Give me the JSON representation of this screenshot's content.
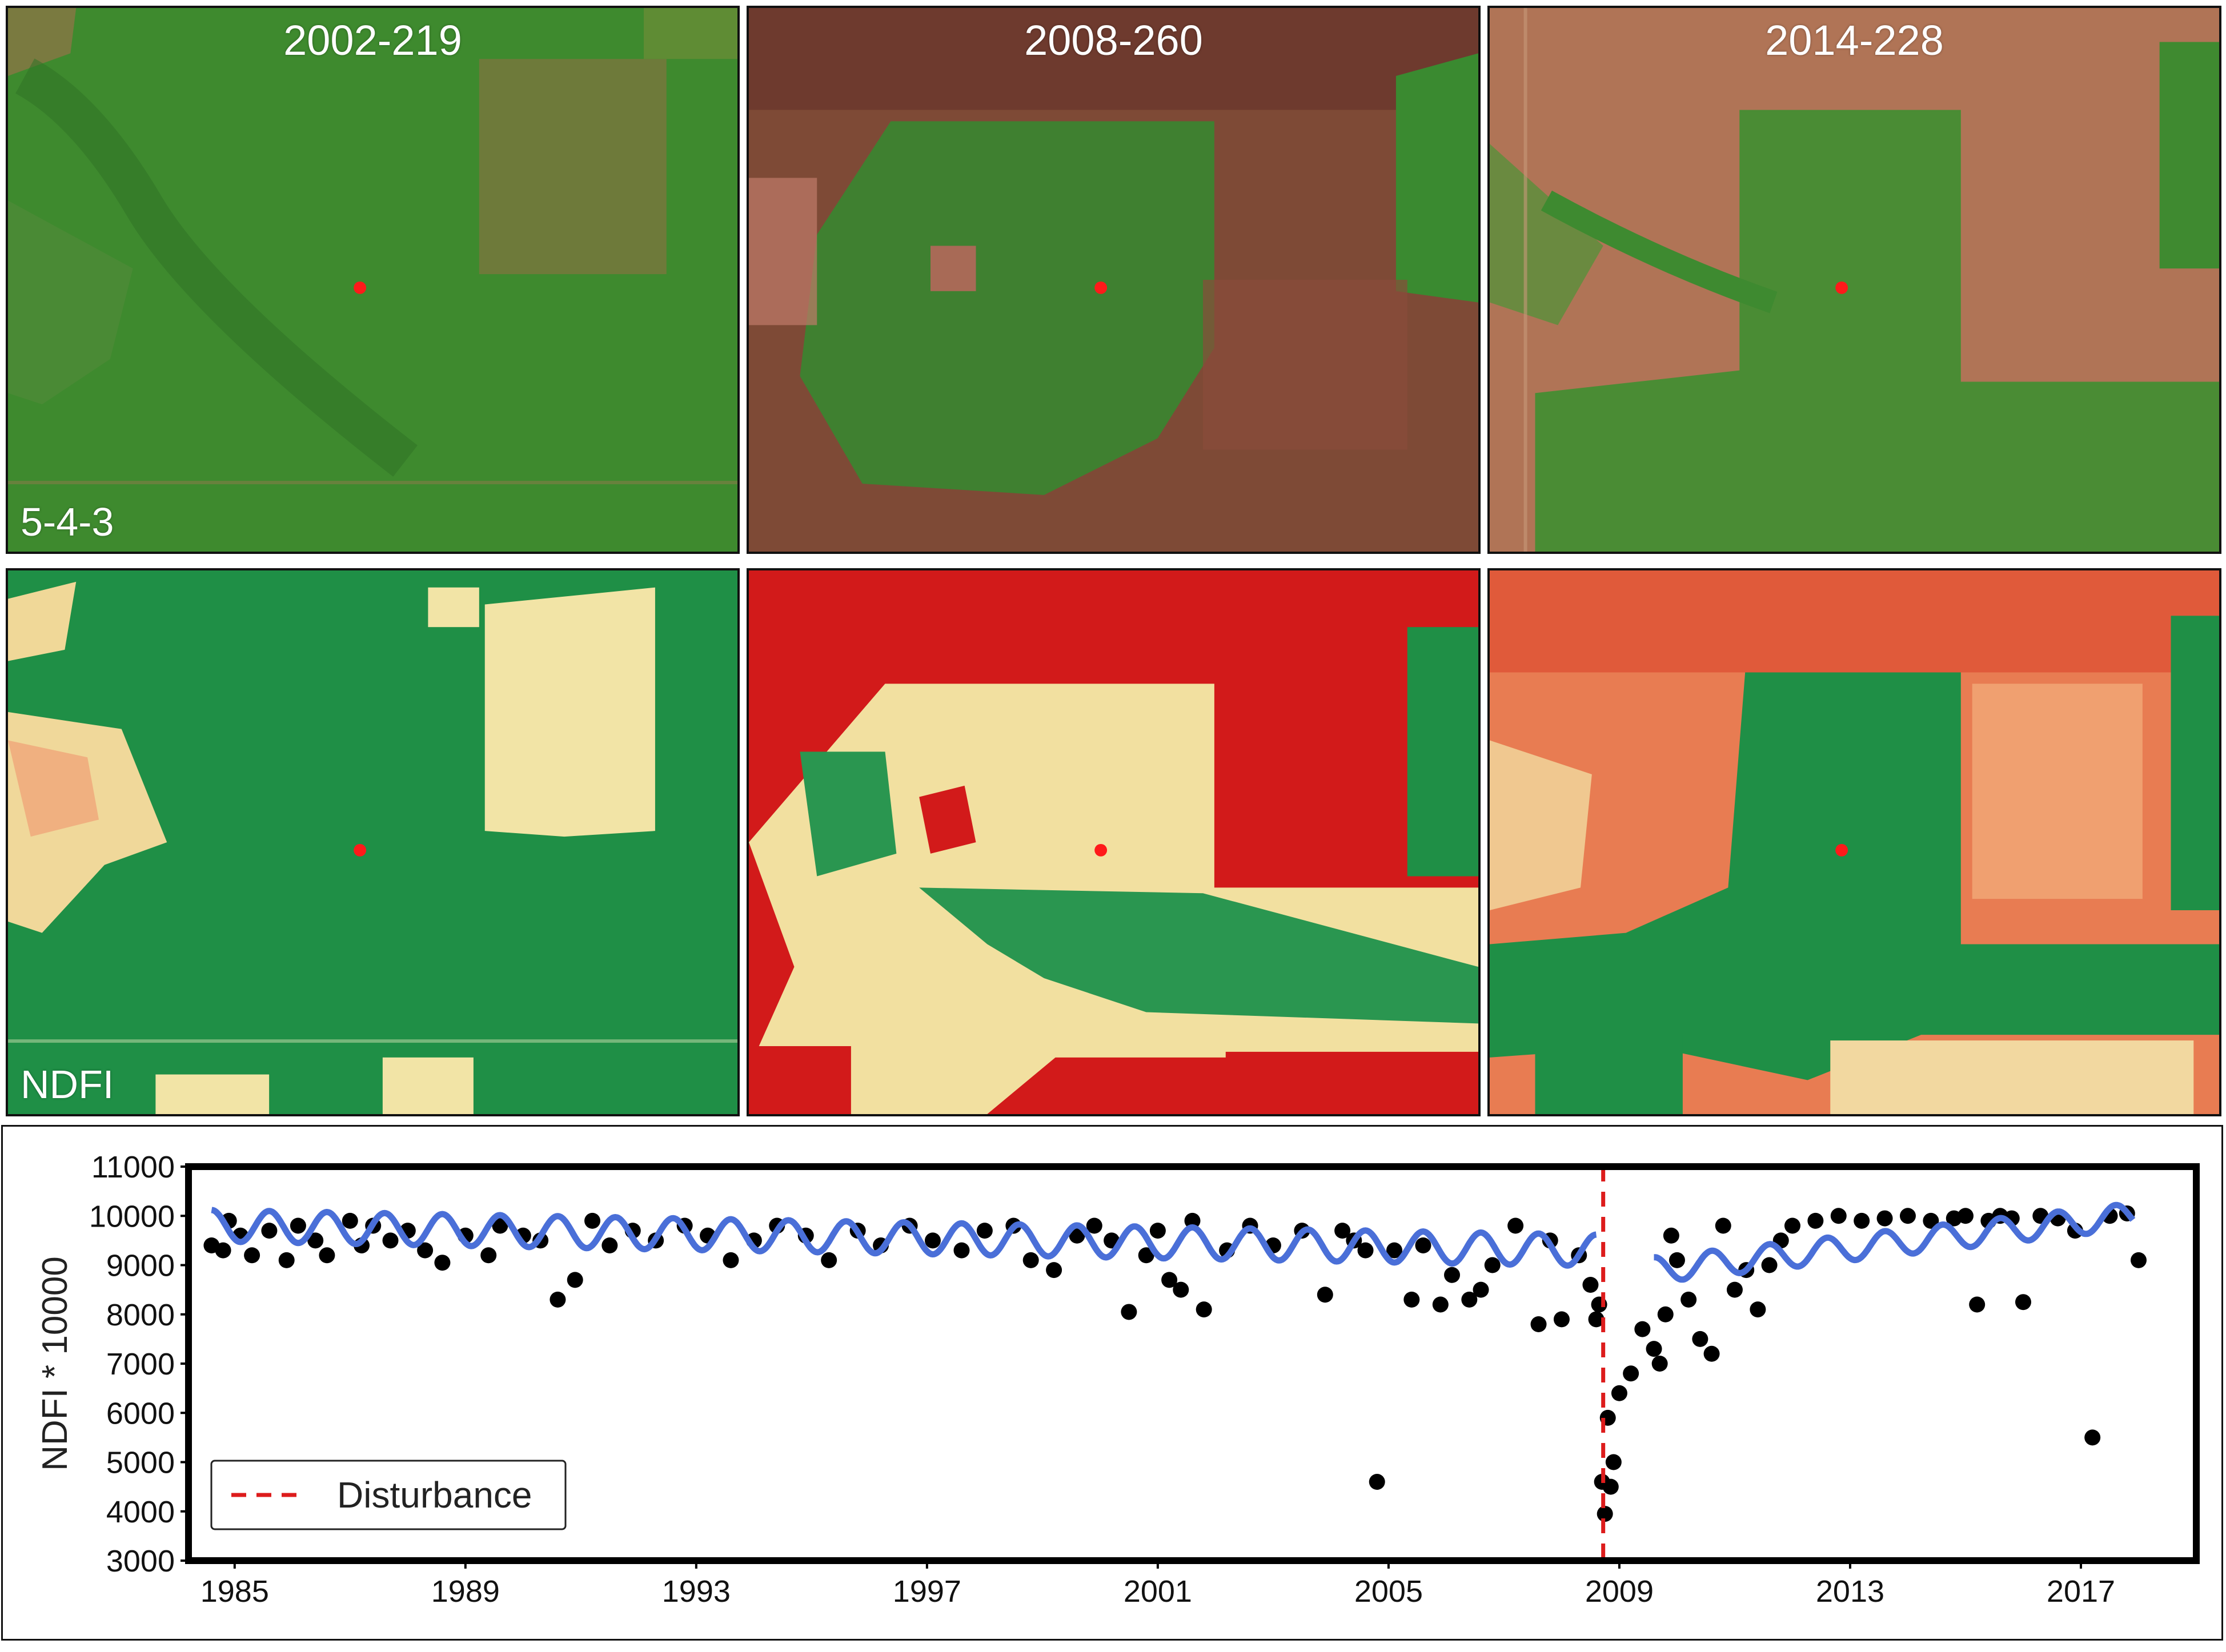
{
  "panels": {
    "titles": [
      "2002-219",
      "2008-260",
      "2014-228"
    ],
    "row_labels": [
      "5-4-3",
      "NDFI"
    ]
  },
  "colors": {
    "forest_green": "#1e8f45",
    "rgb_forest": "#3a8a2c",
    "soil_brown": "#8a4a36",
    "ndfi_red": "#d01818",
    "ndfi_cream": "#f5ecb0",
    "marker_red": "#ff1a1a",
    "fit_blue": "#4a6fd8",
    "point_black": "#000000",
    "disturbance_red": "#dd1c1c"
  },
  "chart_data": {
    "type": "scatter",
    "title": "",
    "xlabel": "",
    "ylabel": "NDFI * 10000",
    "xlim": [
      1984.2,
      2019.0
    ],
    "ylim": [
      3000,
      11000
    ],
    "xticks": [
      1985,
      1989,
      1993,
      1997,
      2001,
      2005,
      2009,
      2013,
      2017
    ],
    "yticks": [
      3000,
      4000,
      5000,
      6000,
      7000,
      8000,
      9000,
      10000,
      11000
    ],
    "disturbance_year": 2008.72,
    "legend": [
      {
        "label": "Disturbance",
        "style": "dashed",
        "color": "#dd1c1c"
      }
    ],
    "legend_position": "bottom-left",
    "series": [
      {
        "name": "observations",
        "kind": "scatter",
        "x": [
          1984.6,
          1984.8,
          1984.9,
          1985.1,
          1985.3,
          1985.6,
          1985.9,
          1986.1,
          1986.4,
          1986.6,
          1987.0,
          1987.2,
          1987.4,
          1987.7,
          1988.0,
          1988.3,
          1988.6,
          1989.0,
          1989.4,
          1989.6,
          1990.0,
          1990.3,
          1990.6,
          1990.9,
          1991.2,
          1991.5,
          1991.9,
          1992.3,
          1992.8,
          1993.2,
          1993.6,
          1994.0,
          1994.4,
          1994.9,
          1995.3,
          1995.8,
          1996.2,
          1996.7,
          1997.1,
          1997.6,
          1998.0,
          1998.5,
          1998.8,
          1999.2,
          1999.6,
          1999.9,
          2000.2,
          2000.5,
          2000.8,
          2001.0,
          2001.2,
          2001.4,
          2001.6,
          2001.8,
          2002.2,
          2002.6,
          2003.0,
          2003.5,
          2003.9,
          2004.2,
          2004.4,
          2004.6,
          2004.8,
          2005.1,
          2005.4,
          2005.6,
          2005.9,
          2006.1,
          2006.4,
          2006.6,
          2006.8,
          2007.2,
          2007.6,
          2007.8,
          2008.0,
          2008.3,
          2008.5,
          2008.6,
          2008.65,
          2008.7,
          2008.75,
          2008.8,
          2008.85,
          2008.9,
          2009.0,
          2009.2,
          2009.4,
          2009.6,
          2009.7,
          2009.8,
          2009.9,
          2010.0,
          2010.2,
          2010.4,
          2010.6,
          2010.8,
          2011.0,
          2011.2,
          2011.4,
          2011.6,
          2011.8,
          2012.0,
          2012.4,
          2012.8,
          2013.2,
          2013.6,
          2014.0,
          2014.4,
          2014.8,
          2015.0,
          2015.2,
          2015.4,
          2015.6,
          2015.8,
          2016.0,
          2016.3,
          2016.6,
          2016.9,
          2017.2,
          2017.5,
          2017.8,
          2018.0
        ],
        "y": [
          9400,
          9300,
          9900,
          9600,
          9200,
          9700,
          9100,
          9800,
          9500,
          9200,
          9900,
          9400,
          9800,
          9500,
          9700,
          9300,
          9050,
          9600,
          9200,
          9800,
          9600,
          9500,
          8300,
          8700,
          9900,
          9400,
          9700,
          9500,
          9800,
          9600,
          9100,
          9500,
          9800,
          9600,
          9100,
          9700,
          9400,
          9800,
          9500,
          9300,
          9700,
          9800,
          9100,
          8900,
          9600,
          9800,
          9500,
          8050,
          9200,
          9700,
          8700,
          8500,
          9900,
          8100,
          9300,
          9800,
          9400,
          9700,
          8400,
          9700,
          9500,
          9300,
          4600,
          9300,
          8300,
          9400,
          8200,
          8800,
          8300,
          8500,
          9000,
          9800,
          7800,
          9500,
          7900,
          9200,
          8600,
          7900,
          8200,
          4600,
          3950,
          5900,
          4500,
          5000,
          6400,
          6800,
          7700,
          7300,
          7000,
          8000,
          9600,
          9100,
          8300,
          7500,
          7200,
          9800,
          8500,
          8900,
          8100,
          9000,
          9500,
          9800,
          9900,
          10000,
          9900,
          9950,
          10000,
          9900,
          9950,
          10000,
          8200,
          9900,
          10000,
          9950,
          8250,
          10000,
          9950,
          9700,
          5500,
          10000,
          10050,
          9100
        ]
      },
      {
        "name": "harmonic fit (pre-disturbance)",
        "kind": "line",
        "x_start": 1984.6,
        "x_end": 2008.6,
        "y_start": 9800,
        "y_end": 9300,
        "amplitude": 320,
        "period": 1
      },
      {
        "name": "harmonic fit (post-disturbance)",
        "kind": "line",
        "x_start": 2009.6,
        "x_end": 2017.9,
        "y_start": 8900,
        "y_end": 10000,
        "amplitude": 260,
        "period": 1
      }
    ]
  }
}
